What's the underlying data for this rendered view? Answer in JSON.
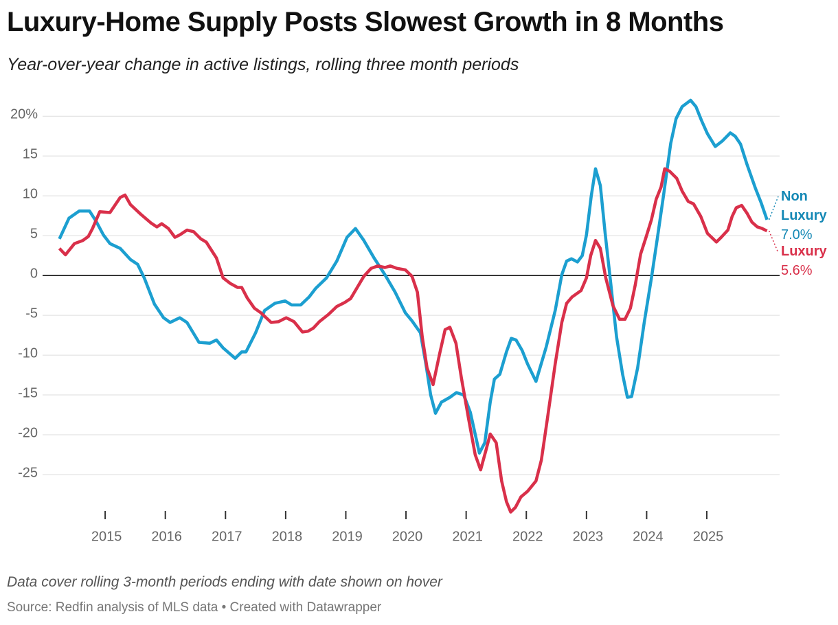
{
  "chart_data": {
    "type": "line",
    "title": "Luxury-Home Supply Posts Slowest Growth in 8 Months",
    "subtitle": "Year-over-year change in active listings, rolling three month periods",
    "note": "Data cover rolling 3-month periods ending with date shown on hover",
    "source": "Source: Redfin analysis of MLS data • Created with Datawrapper",
    "xlim": [
      2013.96,
      2026.21
    ],
    "xticks": [
      2015,
      2016,
      2017,
      2018,
      2019,
      2020,
      2021,
      2022,
      2023,
      2024,
      2025
    ],
    "ylim": [
      -30,
      22
    ],
    "yticks": [
      -25,
      -20,
      -15,
      -10,
      -5,
      0,
      5,
      10,
      15,
      {
        "value": 20,
        "label": "20%"
      }
    ],
    "grid": true,
    "series": [
      {
        "name": "Non Luxury",
        "color": "#1c9fd0",
        "label_color": "#1488b5",
        "end_label": "7.0%",
        "x": [
          2014.24,
          2014.4,
          2014.57,
          2014.74,
          2014.85,
          2014.97,
          2015.08,
          2015.25,
          2015.42,
          2015.54,
          2015.65,
          2015.82,
          2015.97,
          2016.08,
          2016.24,
          2016.36,
          2016.56,
          2016.74,
          2016.85,
          2016.96,
          2017.16,
          2017.27,
          2017.34,
          2017.5,
          2017.65,
          2017.82,
          2017.99,
          2018.1,
          2018.25,
          2018.39,
          2018.5,
          2018.68,
          2018.85,
          2019.02,
          2019.16,
          2019.3,
          2019.47,
          2019.65,
          2019.82,
          2019.99,
          2020.1,
          2020.24,
          2020.33,
          2020.41,
          2020.49,
          2020.59,
          2020.73,
          2020.84,
          2020.96,
          2021.07,
          2021.22,
          2021.31,
          2021.4,
          2021.47,
          2021.56,
          2021.67,
          2021.75,
          2021.83,
          2021.93,
          2022.02,
          2022.16,
          2022.33,
          2022.48,
          2022.59,
          2022.67,
          2022.75,
          2022.85,
          2022.93,
          2023.0,
          2023.08,
          2023.15,
          2023.23,
          2023.31,
          2023.4,
          2023.5,
          2023.6,
          2023.68,
          2023.75,
          2023.85,
          2023.96,
          2024.08,
          2024.18,
          2024.28,
          2024.4,
          2024.49,
          2024.59,
          2024.73,
          2024.82,
          2024.91,
          2025.01,
          2025.14,
          2025.26,
          2025.39,
          2025.47,
          2025.56,
          2025.67,
          2025.81,
          2025.9,
          2026.0
        ],
        "values": [
          4.6,
          7.2,
          8.1,
          8.1,
          6.8,
          5.1,
          4.0,
          3.4,
          2.0,
          1.4,
          -0.3,
          -3.6,
          -5.3,
          -5.9,
          -5.3,
          -5.9,
          -8.4,
          -8.5,
          -8.1,
          -9.1,
          -10.4,
          -9.6,
          -9.6,
          -7.2,
          -4.4,
          -3.5,
          -3.2,
          -3.7,
          -3.7,
          -2.7,
          -1.6,
          -0.3,
          1.8,
          4.8,
          5.9,
          4.4,
          2.2,
          0.1,
          -2.1,
          -4.7,
          -5.7,
          -7.2,
          -11.1,
          -15,
          -17.3,
          -15.9,
          -15.3,
          -14.7,
          -15,
          -17.2,
          -22.3,
          -21,
          -15.9,
          -13,
          -12.4,
          -9.6,
          -7.9,
          -8.1,
          -9.4,
          -11.1,
          -13.3,
          -9,
          -4.4,
          0.1,
          1.8,
          2.1,
          1.7,
          2.5,
          5.1,
          10,
          13.4,
          11.3,
          5.3,
          -0.8,
          -7.7,
          -12.4,
          -15.3,
          -15.2,
          -11.6,
          -5.9,
          -0.3,
          4.8,
          10,
          16.6,
          19.7,
          21.2,
          22,
          21.2,
          19.5,
          17.8,
          16.2,
          16.9,
          17.9,
          17.5,
          16.5,
          13.9,
          10.9,
          9.2,
          7.0
        ]
      },
      {
        "name": "Luxury",
        "color": "#d9304a",
        "label_color": "#d9304a",
        "end_label": "5.6%",
        "x": [
          2014.24,
          2014.34,
          2014.49,
          2014.63,
          2014.72,
          2014.79,
          2014.91,
          2015.08,
          2015.25,
          2015.33,
          2015.42,
          2015.59,
          2015.76,
          2015.86,
          2015.94,
          2016.05,
          2016.16,
          2016.24,
          2016.36,
          2016.47,
          2016.59,
          2016.68,
          2016.85,
          2016.96,
          2017.08,
          2017.2,
          2017.27,
          2017.36,
          2017.48,
          2017.59,
          2017.76,
          2017.88,
          2018.01,
          2018.14,
          2018.28,
          2018.37,
          2018.46,
          2018.56,
          2018.71,
          2018.85,
          2018.98,
          2019.08,
          2019.19,
          2019.3,
          2019.42,
          2019.53,
          2019.65,
          2019.74,
          2019.85,
          2019.99,
          2020.1,
          2020.19,
          2020.27,
          2020.35,
          2020.45,
          2020.56,
          2020.65,
          2020.73,
          2020.83,
          2020.92,
          2021.04,
          2021.15,
          2021.24,
          2021.33,
          2021.4,
          2021.5,
          2021.59,
          2021.67,
          2021.74,
          2021.82,
          2021.91,
          2022.02,
          2022.16,
          2022.25,
          2022.35,
          2022.48,
          2022.59,
          2022.67,
          2022.76,
          2022.91,
          2023.0,
          2023.07,
          2023.15,
          2023.23,
          2023.32,
          2023.44,
          2023.55,
          2023.64,
          2023.73,
          2023.81,
          2023.9,
          2023.99,
          2024.08,
          2024.16,
          2024.24,
          2024.3,
          2024.38,
          2024.5,
          2024.59,
          2024.69,
          2024.78,
          2024.9,
          2025.01,
          2025.16,
          2025.24,
          2025.35,
          2025.42,
          2025.49,
          2025.58,
          2025.67,
          2025.75,
          2025.84,
          2025.92,
          2026.0
        ],
        "values": [
          3.4,
          2.6,
          4.0,
          4.4,
          4.9,
          5.9,
          8.0,
          7.9,
          9.8,
          10.1,
          8.9,
          7.7,
          6.6,
          6.1,
          6.5,
          5.9,
          4.8,
          5.1,
          5.7,
          5.5,
          4.6,
          4.2,
          2.2,
          -0.3,
          -1.0,
          -1.5,
          -1.5,
          -2.8,
          -4.1,
          -4.7,
          -5.9,
          -5.8,
          -5.3,
          -5.8,
          -7.1,
          -7.0,
          -6.6,
          -5.8,
          -4.9,
          -3.9,
          -3.4,
          -2.9,
          -1.5,
          -0.1,
          0.9,
          1.2,
          1.0,
          1.2,
          0.9,
          0.7,
          -0.1,
          -2.1,
          -7.7,
          -11.6,
          -13.7,
          -9.8,
          -6.8,
          -6.5,
          -8.5,
          -12.8,
          -18,
          -22.5,
          -24.4,
          -21.9,
          -19.9,
          -21,
          -25.8,
          -28.4,
          -29.7,
          -29.1,
          -27.8,
          -27.1,
          -25.8,
          -23.2,
          -18,
          -11.1,
          -5.9,
          -3.5,
          -2.7,
          -1.9,
          -0.3,
          2.5,
          4.4,
          3.4,
          -0.3,
          -3.8,
          -5.5,
          -5.5,
          -4.1,
          -1.2,
          2.7,
          4.8,
          7.0,
          9.6,
          11.1,
          13.4,
          13.1,
          12.2,
          10.6,
          9.3,
          9.0,
          7.4,
          5.3,
          4.2,
          4.8,
          5.7,
          7.4,
          8.5,
          8.8,
          7.8,
          6.7,
          6.1,
          5.9,
          5.6
        ]
      }
    ]
  }
}
